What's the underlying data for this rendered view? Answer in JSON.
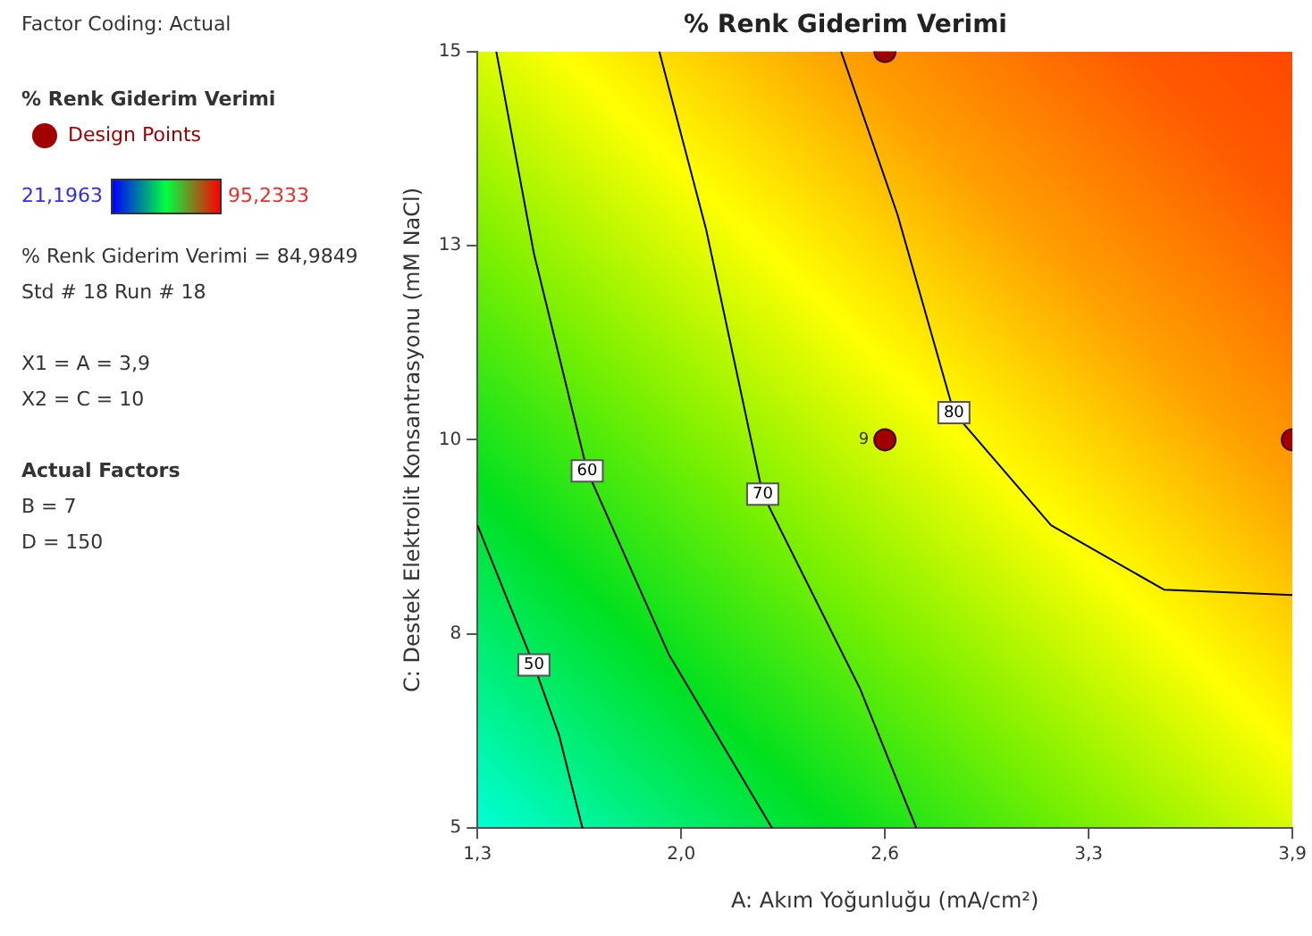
{
  "chart_data": {
    "type": "line",
    "title": "% Renk Giderim Verimi",
    "xlabel": "A: Akım Yoğunluğu (mA/cm²)",
    "ylabel": "C: Destek Elektrolit Konsantrasyonu (mM NaCl)",
    "legend_title": "% Renk Giderim Verimi",
    "legend": "left",
    "grid": false,
    "xlim": [
      1.3,
      3.9
    ],
    "xticks": [
      {
        "value": 1.3,
        "label": "1,3"
      },
      {
        "value": 1.95,
        "label": "2,0"
      },
      {
        "value": 2.6,
        "label": "2,6"
      },
      {
        "value": 3.25,
        "label": "3,3"
      },
      {
        "value": 3.9,
        "label": "3,9"
      }
    ],
    "ylim": [
      5,
      15
    ],
    "yticks": [
      5,
      {
        "value": 7.5,
        "label": "8"
      },
      10,
      {
        "value": 12.5,
        "label": "13"
      },
      15
    ],
    "series": [
      {
        "name": "50",
        "type": "line",
        "marker": "none",
        "color": "#000000",
        "x": [
          1.3,
          1.4,
          1.48,
          1.56,
          1.635
        ],
        "values": [
          8.9,
          7.9,
          7.1,
          6.2,
          5
        ]
      },
      {
        "name": "60",
        "type": "line",
        "marker": "none",
        "color": "#000000",
        "x": [
          1.36,
          1.48,
          1.65,
          1.91,
          2.24
        ],
        "values": [
          15,
          12.4,
          9.6,
          7.24,
          5
        ]
      },
      {
        "name": "70",
        "type": "line",
        "marker": "none",
        "color": "#000000",
        "x": [
          1.88,
          2.03,
          2.21,
          2.52,
          2.7
        ],
        "values": [
          15,
          12.7,
          9.3,
          6.8,
          5
        ]
      },
      {
        "name": "80",
        "type": "line",
        "marker": "none",
        "color": "#000000",
        "x": [
          2.46,
          2.64,
          2.82,
          3.13,
          3.49,
          3.9
        ],
        "values": [
          15,
          12.9,
          10.35,
          8.9,
          8.07,
          8.0
        ]
      },
      {
        "name": "Design Points",
        "type": "scatter",
        "marker": "circle",
        "color": "#a00000",
        "x": [
          2.6,
          2.6,
          3.9
        ],
        "values": [
          15,
          10,
          10
        ]
      }
    ],
    "annotations": [
      "Factor Coding: Actual",
      "21,1963",
      "95,2333",
      "% Renk Giderim Verimi = 84,9849",
      "Std # 18 Run # 18",
      "X1 = A = 3,9",
      "X2 = C = 10",
      "Actual Factors",
      "B = 7",
      "D = 150",
      {
        "text": "9",
        "x": 2.6,
        "y": 10
      }
    ]
  }
}
